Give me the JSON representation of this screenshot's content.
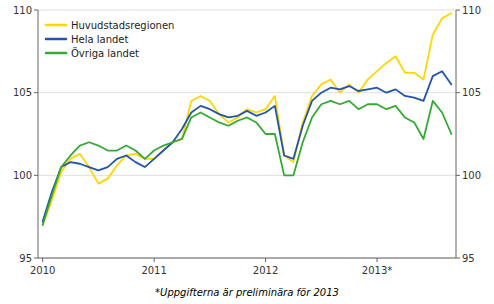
{
  "chart_data": {
    "type": "line",
    "categories": [
      "2010",
      null,
      null,
      null,
      null,
      null,
      null,
      null,
      null,
      null,
      null,
      null,
      "2011",
      null,
      null,
      null,
      null,
      null,
      null,
      null,
      null,
      null,
      null,
      null,
      "2012",
      null,
      null,
      null,
      null,
      null,
      null,
      null,
      null,
      null,
      null,
      null,
      "2013*",
      null,
      null,
      null,
      null,
      null,
      null,
      null,
      null
    ],
    "series": [
      {
        "name": "Huvudstadsregionen",
        "color": "#FFD700",
        "values": [
          97.0,
          98.5,
          100.2,
          101.0,
          101.3,
          100.5,
          99.5,
          99.8,
          100.6,
          101.2,
          101.3,
          101.0,
          101.0,
          101.5,
          102.0,
          102.2,
          104.5,
          104.8,
          104.5,
          103.7,
          103.2,
          103.5,
          104.0,
          103.8,
          104.0,
          104.8,
          101.2,
          100.8,
          103.2,
          104.8,
          105.5,
          105.8,
          105.0,
          105.5,
          105.0,
          105.8,
          106.3,
          106.8,
          107.2,
          106.2,
          106.2,
          105.8,
          108.5,
          109.5,
          109.8
        ]
      },
      {
        "name": "Hela landet",
        "color": "#2255AA",
        "values": [
          97.2,
          99.0,
          100.5,
          100.8,
          100.7,
          100.5,
          100.3,
          100.5,
          101.0,
          101.2,
          100.8,
          100.5,
          101.0,
          101.5,
          102.0,
          102.8,
          103.8,
          104.2,
          104.0,
          103.7,
          103.5,
          103.6,
          103.9,
          103.6,
          103.8,
          104.2,
          101.2,
          101.0,
          103.0,
          104.5,
          105.0,
          105.3,
          105.2,
          105.4,
          105.1,
          105.2,
          105.3,
          105.0,
          105.2,
          104.8,
          104.7,
          104.5,
          106.0,
          106.3,
          105.5
        ]
      },
      {
        "name": "Övriga landet",
        "color": "#33AA33",
        "values": [
          97.0,
          98.8,
          100.5,
          101.2,
          101.8,
          102.0,
          101.8,
          101.5,
          101.5,
          101.8,
          101.5,
          101.0,
          101.5,
          101.8,
          102.0,
          102.2,
          103.5,
          103.8,
          103.5,
          103.2,
          103.0,
          103.3,
          103.5,
          103.2,
          102.5,
          102.5,
          100.0,
          100.0,
          102.0,
          103.5,
          104.3,
          104.5,
          104.3,
          104.5,
          104.0,
          104.3,
          104.3,
          104.0,
          104.2,
          103.5,
          103.2,
          102.2,
          104.5,
          103.8,
          102.5
        ]
      }
    ],
    "ylim": [
      95,
      110
    ],
    "yticks": [
      95,
      100,
      105,
      110
    ],
    "y2lim": [
      95,
      110
    ],
    "y2ticks": [
      95,
      100,
      105,
      110
    ],
    "grid": true,
    "legend": "upper left",
    "footnote": "*Uppgifterna är preliminära för 2013"
  }
}
